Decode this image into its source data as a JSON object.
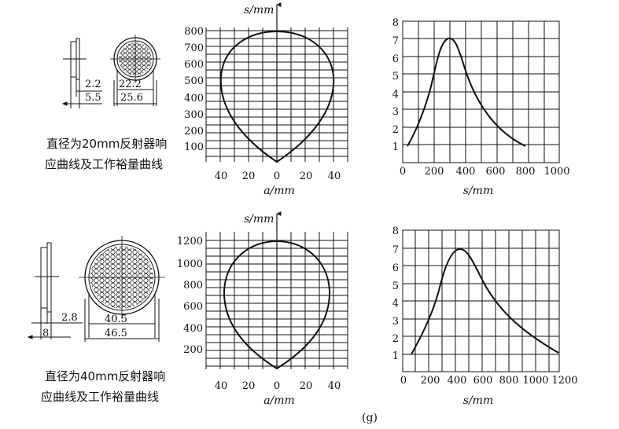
{
  "figure_label": "(g)",
  "rows": [
    {
      "caption_line1": "直径为20mm反射器响",
      "caption_line2": "应曲线及工作裕量曲线",
      "reflector_dims": [
        "2.2",
        "5.5",
        "22.2",
        "25.6"
      ],
      "response": {
        "y_axis_label": "s/mm",
        "x_axis_label": "a/mm",
        "y_ticks": [
          "100",
          "200",
          "300",
          "400",
          "500",
          "600",
          "700",
          "800"
        ],
        "x_ticks": [
          "40",
          "20",
          "0",
          "20",
          "40"
        ]
      },
      "margin": {
        "x_axis_label": "s/mm",
        "y_ticks": [
          "1",
          "2",
          "3",
          "4",
          "5",
          "6",
          "7",
          "8"
        ],
        "x_ticks": [
          "0",
          "200",
          "400",
          "600",
          "800",
          "1000"
        ]
      }
    },
    {
      "caption_line1": "直径为40mm反射器响",
      "caption_line2": "应曲线及工作裕量曲线",
      "reflector_dims": [
        "2.8",
        "8",
        "40.5",
        "46.5"
      ],
      "response": {
        "y_axis_label": "s/mm",
        "x_axis_label": "a/mm",
        "y_ticks": [
          "200",
          "400",
          "600",
          "800",
          "1000",
          "1200"
        ],
        "x_ticks": [
          "40",
          "20",
          "0",
          "20",
          "40"
        ]
      },
      "margin": {
        "x_axis_label": "s/mm",
        "y_ticks": [
          "1",
          "2",
          "3",
          "4",
          "5",
          "6",
          "7",
          "8"
        ],
        "x_ticks": [
          "0",
          "200",
          "400",
          "600",
          "800",
          "1000",
          "1200"
        ]
      }
    }
  ]
}
